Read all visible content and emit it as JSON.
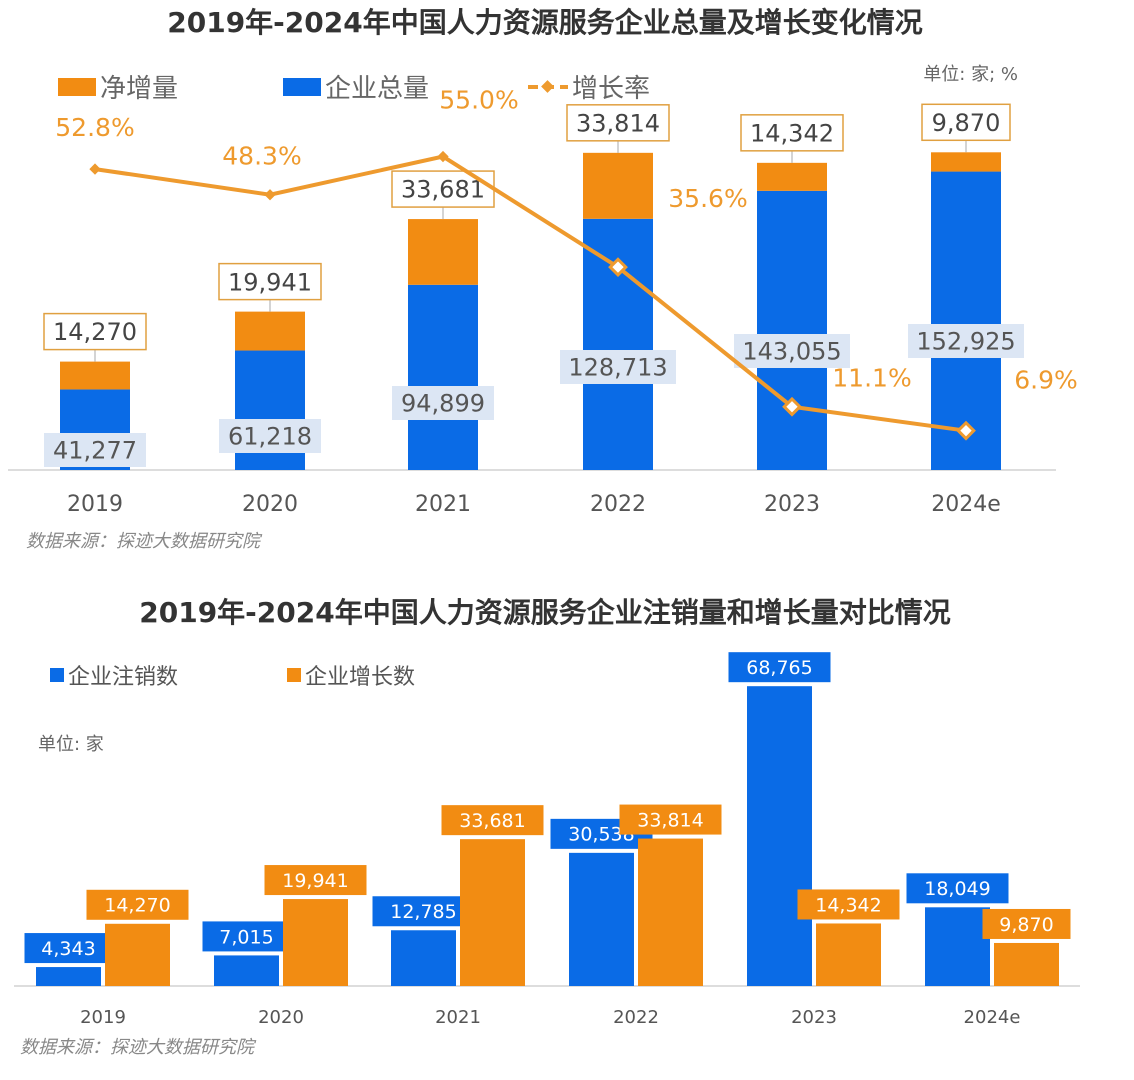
{
  "colors": {
    "orange": "#F28C12",
    "blue": "#0A6BE6",
    "line": "#EE9A2E",
    "total_label_bg": "#DCE6F4"
  },
  "chart_data": [
    {
      "type": "bar",
      "subtype": "stacked-bar-with-line",
      "title": "2019年-2024年中国人力资源服务企业总量及增长变化情况",
      "unit_note": "单位: 家; %",
      "source": "数据来源：探迹大数据研究院",
      "categories": [
        "2019",
        "2020",
        "2021",
        "2022",
        "2023",
        "2024e"
      ],
      "series": [
        {
          "name": "净增量",
          "kind": "bar",
          "values": [
            14270,
            19941,
            33681,
            33814,
            14342,
            9870
          ],
          "labels": [
            "14,270",
            "19,941",
            "33,681",
            "33,814",
            "14,342",
            "9,870"
          ]
        },
        {
          "name": "企业总量",
          "kind": "bar",
          "values": [
            41277,
            61218,
            94899,
            128713,
            143055,
            152925
          ],
          "labels": [
            "41,277",
            "61,218",
            "94,899",
            "128,713",
            "143,055",
            "152,925"
          ]
        },
        {
          "name": "增长率",
          "kind": "line",
          "axis": "secondary",
          "values": [
            52.8,
            48.3,
            55.0,
            35.6,
            11.1,
            6.9
          ],
          "labels": [
            "52.8%",
            "48.3%",
            "55.0%",
            "35.6%",
            "11.1%",
            "6.9%"
          ]
        }
      ],
      "ylim": [
        0,
        165000
      ],
      "y2lim": [
        0,
        56.5
      ],
      "grid": false,
      "legend": "top-left"
    },
    {
      "type": "bar",
      "title": "2019年-2024年中国人力资源服务企业注销量和增长量对比情况",
      "unit_note": "单位: 家",
      "source": "数据来源：探迹大数据研究院",
      "categories": [
        "2019",
        "2020",
        "2021",
        "2022",
        "2023",
        "2024e"
      ],
      "series": [
        {
          "name": "企业注销数",
          "values": [
            4343,
            7015,
            12785,
            30538,
            68765,
            18049
          ],
          "labels": [
            "4,343",
            "7,015",
            "12,785",
            "30,538",
            "68,765",
            "18,049"
          ]
        },
        {
          "name": "企业增长数",
          "values": [
            14270,
            19941,
            33681,
            33814,
            14342,
            9870
          ],
          "labels": [
            "14,270",
            "19,941",
            "33,681",
            "33,814",
            "14,342",
            "9,870"
          ]
        }
      ],
      "ylim": [
        0,
        75000
      ],
      "grid": false,
      "legend": "top-left"
    }
  ]
}
